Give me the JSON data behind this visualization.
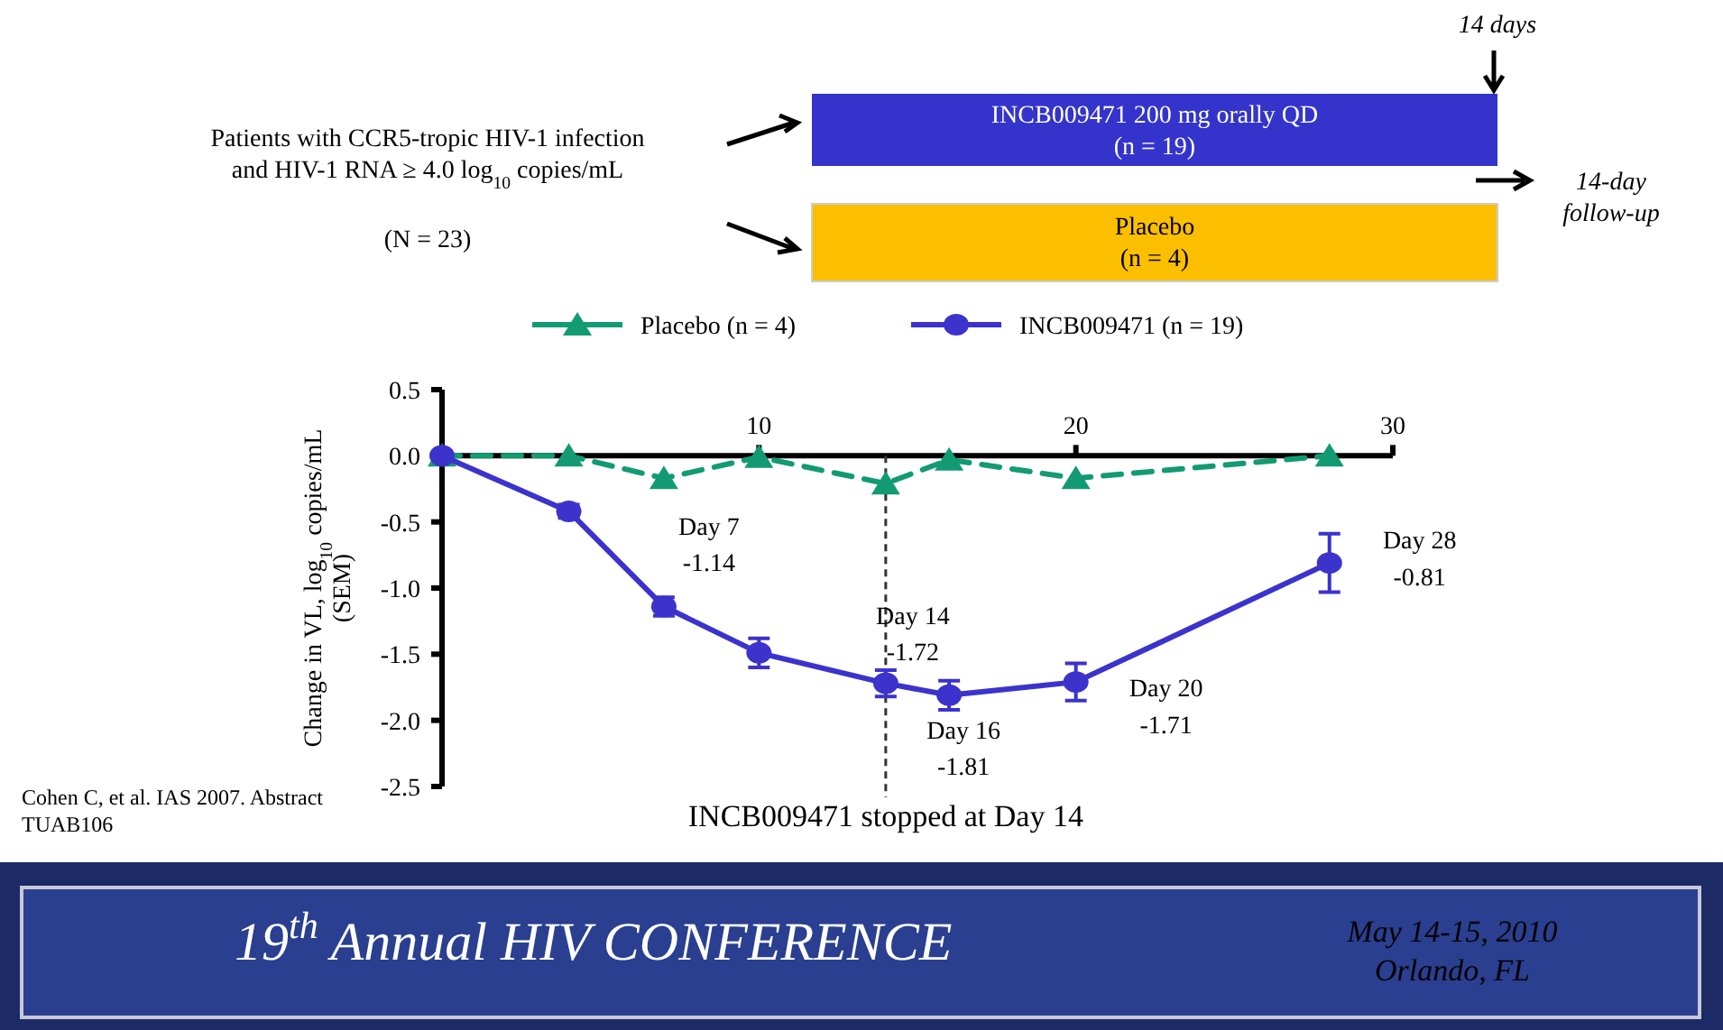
{
  "chart_data": {
    "type": "line",
    "ylabel": "Change in VL, log$_{10}$ copies/mL\n(SEM)",
    "x": [
      0,
      4,
      7,
      10,
      14,
      16,
      20,
      28
    ],
    "xlim": [
      0,
      30
    ],
    "xticks": [
      {
        "value": 0,
        "label": null
      },
      10,
      20,
      30
    ],
    "ylim": [
      -2.5,
      0.5
    ],
    "yticks": [
      -2.5,
      {
        "value": -2,
        "label": "-2.0"
      },
      -1.5,
      {
        "value": -1,
        "label": "-1.0"
      },
      -0.5,
      {
        "value": 0,
        "label": "0.0"
      },
      0.5
    ],
    "grid": false,
    "legend": "top",
    "series": [
      {
        "name": "Placebo (n = 4)",
        "color": "#129b73",
        "values": [
          0,
          0,
          -0.17,
          -0.01,
          -0.21,
          -0.03,
          -0.17,
          0
        ],
        "marker": "triangle",
        "line_style": "dashed"
      },
      {
        "name": "INCB009471 (n = 19)",
        "color": "#3b33cc",
        "values": [
          0,
          -0.42,
          -1.14,
          -1.49,
          -1.72,
          -1.81,
          -1.71,
          -0.81
        ],
        "errors": [
          null,
          0.05,
          0.07,
          0.11,
          0.1,
          0.11,
          0.14,
          0.22
        ],
        "marker": "circle",
        "line_style": "solid"
      }
    ],
    "ref_lines": [
      {
        "axis": "x",
        "value": 14,
        "label": "INCB009471 stopped at Day 14",
        "line_style": "dashed",
        "color": "#333333"
      }
    ],
    "annotations": [
      "Patients with CCR5-tropic HIV-1 infection\nand HIV-1 RNA ≥ 4.0 log$_{10}$ copies/mL",
      "(N = 23)",
      "INCB009471 200 mg orally QD\n(n = 19)",
      "Placebo\n(n = 4)",
      "14 days",
      "14-day\nfollow-up",
      "Cohen C, et al. IAS 2007. Abstract\nTUAB106",
      "19$^{th}$ Annual HIV CONFERENCE",
      "May 14-15, 2010\nOrlando, FL",
      {
        "text": "Day 7\n-1.14",
        "x": 7,
        "y": -1.14
      },
      {
        "text": "Day 14\n-1.72",
        "x": 14,
        "y": -1.72
      },
      {
        "text": "Day 16\n-1.81",
        "x": 16,
        "y": -1.81
      },
      {
        "text": "Day 20\n-1.71",
        "x": 20,
        "y": -1.71
      },
      {
        "text": "Day 28\n-0.81",
        "x": 28,
        "y": -0.81
      }
    ]
  }
}
